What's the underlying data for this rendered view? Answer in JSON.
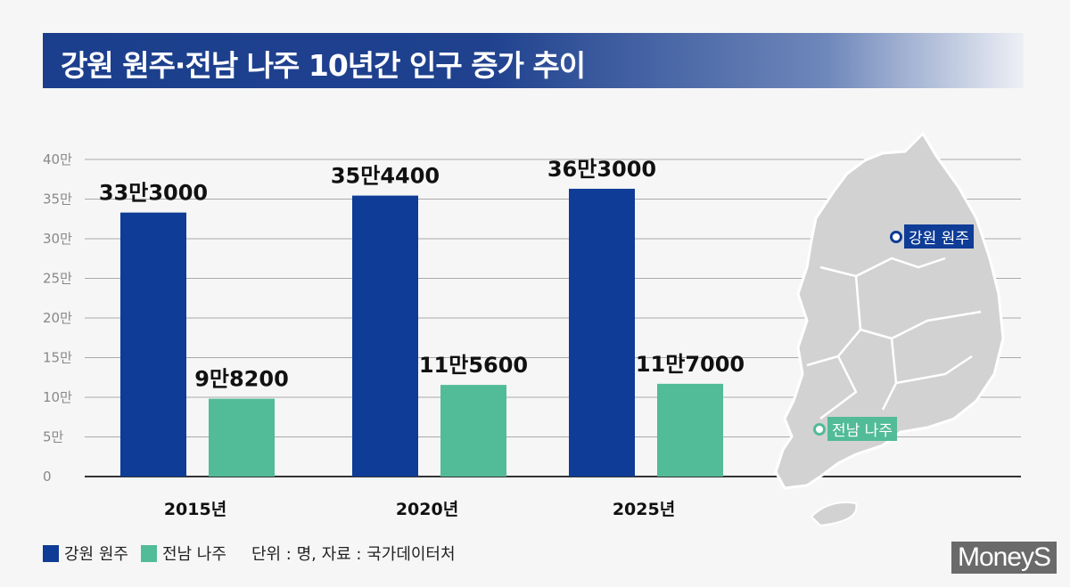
{
  "title": "강원 원주·전남 나주 10년간 인구 증가 추이",
  "chart_data": {
    "type": "bar",
    "title": "강원 원주·전남 나주 10년간 인구 증가 추이",
    "categories": [
      "2015년",
      "2020년",
      "2025년"
    ],
    "series": [
      {
        "name": "강원 원주",
        "color": "#0e3c96",
        "values": [
          333000,
          354400,
          363000
        ],
        "labels": [
          "33만3000",
          "35만4400",
          "36만3000"
        ]
      },
      {
        "name": "전남 나주",
        "color": "#52bb98",
        "values": [
          98200,
          115600,
          117000
        ],
        "labels": [
          "9만8200",
          "11만5600",
          "11만7000"
        ]
      }
    ],
    "ylim": [
      0,
      400000
    ],
    "yticks": [
      {
        "v": 0,
        "label": "0"
      },
      {
        "v": 50000,
        "label": "5만"
      },
      {
        "v": 100000,
        "label": "10만"
      },
      {
        "v": 150000,
        "label": "15만"
      },
      {
        "v": 200000,
        "label": "20만"
      },
      {
        "v": 250000,
        "label": "25만"
      },
      {
        "v": 300000,
        "label": "30만"
      },
      {
        "v": 350000,
        "label": "35만"
      },
      {
        "v": 400000,
        "label": "40만"
      }
    ],
    "grid": true,
    "legend": "bottom-left",
    "note": "단위 : 명, 자료 : 국가데이터처"
  },
  "map": {
    "labels": [
      "강원 원주",
      "전남 나주"
    ]
  },
  "logo": "MoneyS"
}
